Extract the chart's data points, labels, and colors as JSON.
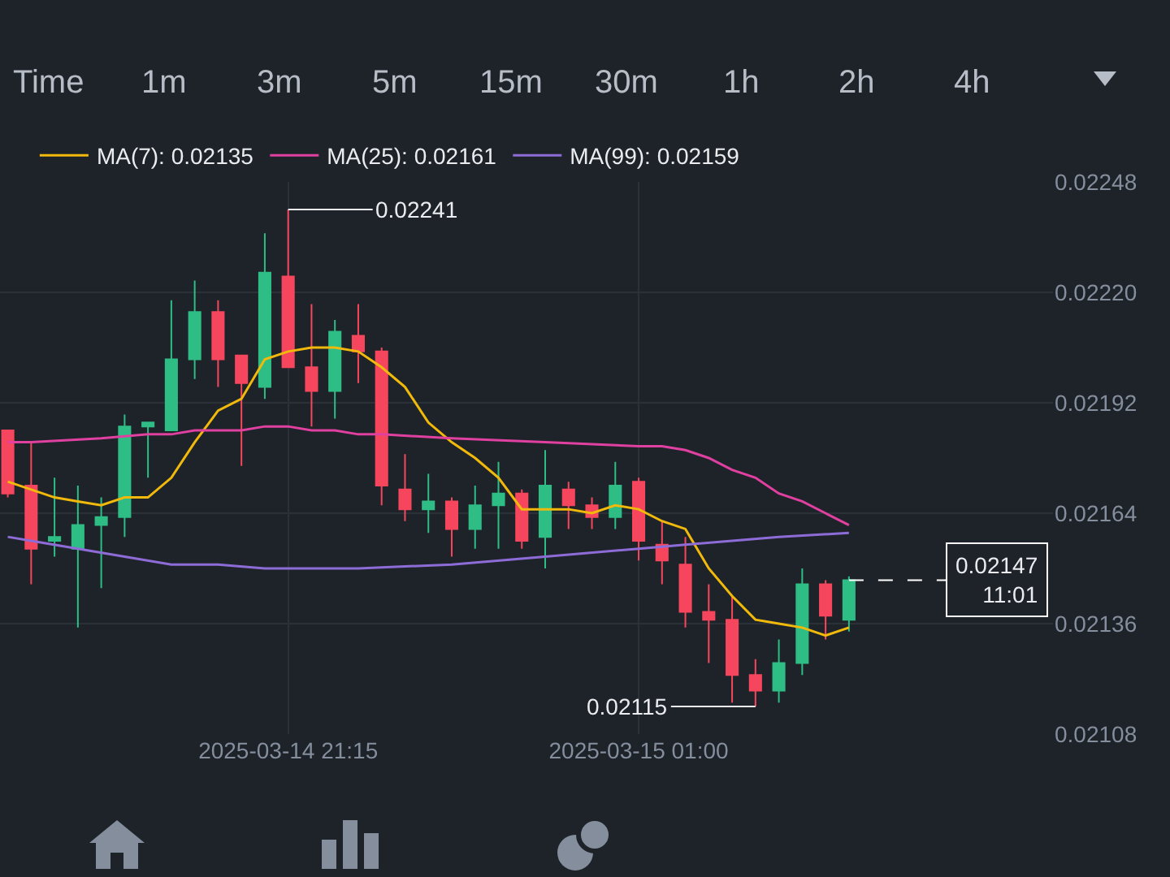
{
  "chart_data": {
    "type": "candlestick",
    "x": [
      "2025-03-14T18:15",
      "2025-03-14T18:30",
      "2025-03-14T18:45",
      "2025-03-14T19:00",
      "2025-03-14T19:15",
      "2025-03-14T19:30",
      "2025-03-14T19:45",
      "2025-03-14T20:00",
      "2025-03-14T20:15",
      "2025-03-14T20:30",
      "2025-03-14T20:45",
      "2025-03-14T21:00",
      "2025-03-14T21:15",
      "2025-03-14T21:30",
      "2025-03-14T21:45",
      "2025-03-14T22:00",
      "2025-03-14T22:15",
      "2025-03-14T22:30",
      "2025-03-14T22:45",
      "2025-03-14T23:00",
      "2025-03-14T23:15",
      "2025-03-14T23:30",
      "2025-03-14T23:45",
      "2025-03-15T00:00",
      "2025-03-15T00:15",
      "2025-03-15T00:30",
      "2025-03-15T00:45",
      "2025-03-15T01:00",
      "2025-03-15T01:15",
      "2025-03-15T01:30",
      "2025-03-15T01:45",
      "2025-03-15T02:00",
      "2025-03-15T02:15",
      "2025-03-15T02:30",
      "2025-03-15T02:45",
      "2025-03-15T03:00",
      "2025-03-15T03:15"
    ],
    "ohlc": [
      [
        0.02185,
        0.02185,
        0.02168,
        0.02169
      ],
      [
        0.02171,
        0.02182,
        0.02146,
        0.02155
      ],
      [
        0.02157,
        0.02173,
        0.02153,
        0.02158
      ],
      [
        0.02155,
        0.02171,
        0.02135,
        0.02161
      ],
      [
        0.02161,
        0.02168,
        0.02145,
        0.02163
      ],
      [
        0.02163,
        0.02189,
        0.02158,
        0.02186
      ],
      [
        0.02186,
        0.02187,
        0.02173,
        0.02187
      ],
      [
        0.02185,
        0.02218,
        0.02185,
        0.02203
      ],
      [
        0.02203,
        0.02223,
        0.02198,
        0.02215
      ],
      [
        0.02215,
        0.02218,
        0.02196,
        0.02203
      ],
      [
        0.02204,
        0.02204,
        0.02176,
        0.02197
      ],
      [
        0.02196,
        0.02235,
        0.02193,
        0.02225
      ],
      [
        0.02224,
        0.02241,
        0.02201,
        0.02201
      ],
      [
        0.02201,
        0.02217,
        0.02186,
        0.02195
      ],
      [
        0.02195,
        0.02213,
        0.02188,
        0.0221
      ],
      [
        0.02209,
        0.02217,
        0.02197,
        0.02205
      ],
      [
        0.02205,
        0.02206,
        0.02166,
        0.02171
      ],
      [
        0.0217,
        0.02179,
        0.02162,
        0.02165
      ],
      [
        0.02165,
        0.02174,
        0.02159,
        0.02167
      ],
      [
        0.02167,
        0.02168,
        0.02153,
        0.0216
      ],
      [
        0.0216,
        0.02171,
        0.02155,
        0.02166
      ],
      [
        0.02166,
        0.02177,
        0.02155,
        0.02169
      ],
      [
        0.02169,
        0.0217,
        0.02155,
        0.02157
      ],
      [
        0.02158,
        0.0218,
        0.0215,
        0.02171
      ],
      [
        0.0217,
        0.02172,
        0.0216,
        0.02166
      ],
      [
        0.02166,
        0.02168,
        0.0216,
        0.02163
      ],
      [
        0.02163,
        0.02177,
        0.0216,
        0.02171
      ],
      [
        0.02172,
        0.02173,
        0.02152,
        0.02157
      ],
      [
        0.02156,
        0.02162,
        0.02146,
        0.02152
      ],
      [
        0.02151,
        0.02158,
        0.02135,
        0.02139
      ],
      [
        0.02139,
        0.02146,
        0.02126,
        0.02137
      ],
      [
        0.02137,
        0.02143,
        0.02116,
        0.02123
      ],
      [
        0.02123,
        0.02127,
        0.02115,
        0.02119
      ],
      [
        0.02119,
        0.02132,
        0.02116,
        0.02126
      ],
      [
        0.02126,
        0.0215,
        0.02123,
        0.02146
      ],
      [
        0.02146,
        0.02147,
        0.02132,
        0.02138
      ],
      [
        0.02137,
        0.02148,
        0.02134,
        0.02147
      ]
    ],
    "colors": [
      "#f6465d",
      "#f6465d",
      "#2ebd85",
      "#2ebd85",
      "#2ebd85",
      "#2ebd85",
      "#2ebd85",
      "#2ebd85",
      "#2ebd85",
      "#f6465d",
      "#f6465d",
      "#2ebd85",
      "#f6465d",
      "#f6465d",
      "#2ebd85",
      "#f6465d",
      "#f6465d",
      "#f6465d",
      "#2ebd85",
      "#f6465d",
      "#2ebd85",
      "#2ebd85",
      "#f6465d",
      "#2ebd85",
      "#f6465d",
      "#f6465d",
      "#2ebd85",
      "#f6465d",
      "#f6465d",
      "#f6465d",
      "#f6465d",
      "#f6465d",
      "#f6465d",
      "#2ebd85",
      "#2ebd85",
      "#f6465d",
      "#2ebd85"
    ],
    "series": [
      {
        "name": "MA(7): 0.02135",
        "type": "line",
        "color": "#f0b90b",
        "x": [
          "2025-03-14T18:15",
          "2025-03-14T18:30",
          "2025-03-14T18:45",
          "2025-03-14T19:00",
          "2025-03-14T19:15",
          "2025-03-14T19:30",
          "2025-03-14T19:45",
          "2025-03-14T20:00",
          "2025-03-14T20:15",
          "2025-03-14T20:30",
          "2025-03-14T20:45",
          "2025-03-14T21:00",
          "2025-03-14T21:15",
          "2025-03-14T21:30",
          "2025-03-14T21:45",
          "2025-03-14T22:00",
          "2025-03-14T22:15",
          "2025-03-14T22:30",
          "2025-03-14T22:45",
          "2025-03-14T23:00",
          "2025-03-14T23:15",
          "2025-03-14T23:30",
          "2025-03-14T23:45",
          "2025-03-15T00:00",
          "2025-03-15T00:15",
          "2025-03-15T00:30",
          "2025-03-15T00:45",
          "2025-03-15T01:00",
          "2025-03-15T01:15",
          "2025-03-15T01:30",
          "2025-03-15T01:45",
          "2025-03-15T02:00",
          "2025-03-15T02:15",
          "2025-03-15T02:30",
          "2025-03-15T02:45",
          "2025-03-15T03:00",
          "2025-03-15T03:15"
        ],
        "values": [
          0.02172,
          0.0217,
          0.02168,
          0.02167,
          0.02166,
          0.02168,
          0.02168,
          0.02173,
          0.02182,
          0.0219,
          0.02193,
          0.02203,
          0.02205,
          0.02206,
          0.02206,
          0.02205,
          0.02201,
          0.02196,
          0.02187,
          0.02182,
          0.02178,
          0.02173,
          0.02165,
          0.02165,
          0.02165,
          0.02164,
          0.02166,
          0.02165,
          0.02162,
          0.0216,
          0.0215,
          0.02143,
          0.02137,
          0.02136,
          0.02135,
          0.02133,
          0.02135
        ]
      },
      {
        "name": "MA(25): 0.02161",
        "type": "line",
        "color": "#e040a0",
        "x": [
          "2025-03-14T18:15",
          "2025-03-14T18:30",
          "2025-03-14T19:15",
          "2025-03-14T19:45",
          "2025-03-14T20:00",
          "2025-03-14T20:15",
          "2025-03-14T20:30",
          "2025-03-14T20:45",
          "2025-03-14T21:00",
          "2025-03-14T21:15",
          "2025-03-14T21:30",
          "2025-03-14T21:45",
          "2025-03-14T22:00",
          "2025-03-14T22:15",
          "2025-03-14T23:00",
          "2025-03-15T00:00",
          "2025-03-15T01:00",
          "2025-03-15T01:15",
          "2025-03-15T01:30",
          "2025-03-15T01:45",
          "2025-03-15T02:00",
          "2025-03-15T02:15",
          "2025-03-15T02:30",
          "2025-03-15T02:45",
          "2025-03-15T03:00",
          "2025-03-15T03:15"
        ],
        "values": [
          0.02182,
          0.02182,
          0.02183,
          0.02184,
          0.02184,
          0.02185,
          0.02185,
          0.02185,
          0.02186,
          0.02186,
          0.02185,
          0.02185,
          0.02184,
          0.02184,
          0.02183,
          0.02182,
          0.02181,
          0.02181,
          0.0218,
          0.02178,
          0.02175,
          0.02173,
          0.02169,
          0.02167,
          0.02164,
          0.02161
        ]
      },
      {
        "name": "MA(99): 0.02159",
        "type": "line",
        "color": "#8e6cd8",
        "x": [
          "2025-03-14T18:15",
          "2025-03-14T18:30",
          "2025-03-14T19:00",
          "2025-03-14T19:30",
          "2025-03-14T20:00",
          "2025-03-14T20:30",
          "2025-03-14T21:00",
          "2025-03-14T21:30",
          "2025-03-14T22:00",
          "2025-03-14T23:00",
          "2025-03-15T00:00",
          "2025-03-15T01:00",
          "2025-03-15T01:30",
          "2025-03-15T02:00",
          "2025-03-15T02:30",
          "2025-03-15T03:15"
        ],
        "values": [
          0.02158,
          0.02157,
          0.02155,
          0.02153,
          0.02151,
          0.02151,
          0.0215,
          0.0215,
          0.0215,
          0.02151,
          0.02153,
          0.02155,
          0.02156,
          0.02157,
          0.02158,
          0.02159
        ]
      }
    ],
    "xlim": [
      "2025-03-14T18:10",
      "2025-03-15T05:26"
    ],
    "xticks": [
      {
        "value": "2025-03-14T21:15",
        "label": "2025-03-14 21:15"
      },
      {
        "value": "2025-03-15T01:00",
        "label": "2025-03-15 01:00"
      }
    ],
    "ylim": [
      0.02108,
      0.02248
    ],
    "yticks": [
      0.02108,
      0.02136,
      0.02164,
      0.02192,
      {
        "value": 0.0222,
        "label": "0.02220"
      },
      0.02248
    ],
    "grid": true,
    "legend": "top left",
    "ref_lines": [
      {
        "axis": "y",
        "value": 0.02147,
        "label": "0.02147\n11:01",
        "line_style": "dashed",
        "color": "#ffffff"
      }
    ],
    "annotations": [
      {
        "text": "0.02241",
        "x": "2025-03-14T21:15",
        "y": 0.02241
      },
      {
        "text": "0.02115",
        "x": "2025-03-15T02:15",
        "y": 0.02115
      },
      "Time",
      "1m",
      "3m",
      "5m",
      "15m",
      "30m",
      "1h",
      "2h",
      "4h"
    ]
  }
}
